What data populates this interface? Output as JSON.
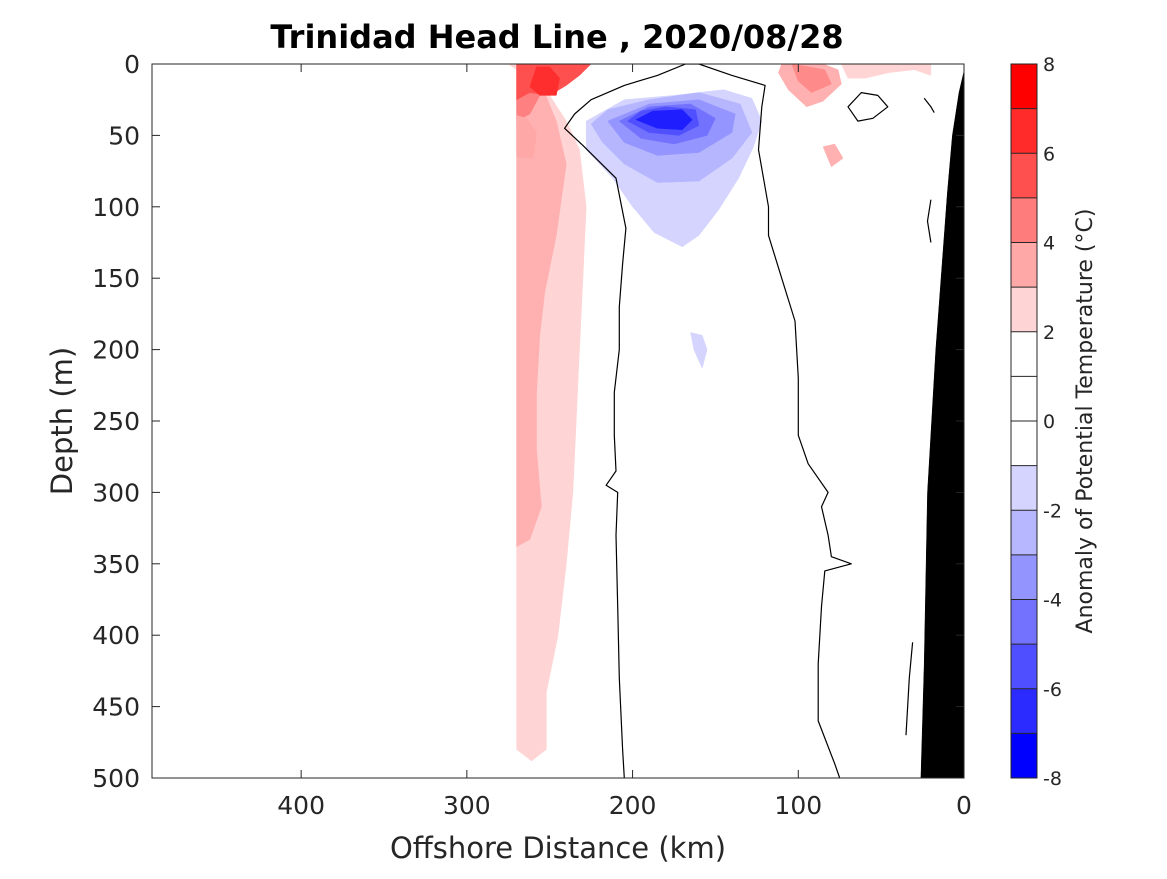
{
  "chart_data": {
    "type": "heatmap",
    "subtype": "filled-contour-section",
    "title": "Trinidad Head Line , 2020/08/28",
    "xlabel": "Offshore Distance (km)",
    "ylabel": "Depth (m)",
    "x_direction": "reversed",
    "y_direction": "reversed",
    "xlim": [
      0,
      490
    ],
    "ylim": [
      0,
      500
    ],
    "xticks": [
      400,
      300,
      200,
      100,
      0
    ],
    "xtick_labels": [
      "400",
      "300",
      "200",
      "100",
      "0"
    ],
    "yticks": [
      0,
      50,
      100,
      150,
      200,
      250,
      300,
      350,
      400,
      450,
      500
    ],
    "ytick_labels": [
      "0",
      "50",
      "100",
      "150",
      "200",
      "250",
      "300",
      "350",
      "400",
      "450",
      "500"
    ],
    "colorbar": {
      "label": "Anomaly of Potential Temperature (°C)",
      "range": [
        -8,
        8
      ],
      "levels": [
        -8,
        -7,
        -6,
        -5,
        -4,
        -3,
        -2,
        -1,
        1,
        2,
        3,
        4,
        5,
        6,
        7,
        8
      ],
      "ticks": [
        8,
        6,
        4,
        2,
        0,
        -2,
        -4,
        -6,
        -8
      ],
      "tick_labels": [
        "8",
        "6",
        "4",
        "2",
        "0",
        "-2",
        "-4",
        "-6",
        "-8"
      ],
      "colors_top_to_bottom": [
        "#ff0000",
        "#ff2a2a",
        "#ff5050",
        "#ff7c7c",
        "#ffa8a8",
        "#ffd4d4",
        "#ffffff",
        "#ffffff",
        "#d4d4ff",
        "#b7b7ff",
        "#9494ff",
        "#7272ff",
        "#4f4fff",
        "#2b2bff",
        "#0000ff"
      ]
    },
    "regions": [
      {
        "name": "warm anomaly +1 to +2",
        "value_range": [
          1,
          2
        ],
        "color": "#ffd4d4",
        "points": [
          [
            270,
            0
          ],
          [
            270,
            480
          ],
          [
            261,
            488
          ],
          [
            252,
            480
          ],
          [
            252,
            440
          ],
          [
            245,
            400
          ],
          [
            240,
            350
          ],
          [
            236,
            300
          ],
          [
            234,
            250
          ],
          [
            232,
            200
          ],
          [
            230,
            150
          ],
          [
            228,
            100
          ],
          [
            232,
            60
          ],
          [
            240,
            40
          ],
          [
            250,
            22
          ],
          [
            265,
            8
          ],
          [
            275,
            0
          ]
        ]
      },
      {
        "name": "warm anomaly +2 to +3",
        "value_range": [
          2,
          3
        ],
        "color": "#ffb0b0",
        "points": [
          [
            270,
            0
          ],
          [
            270,
            338
          ],
          [
            262,
            333
          ],
          [
            255,
            310
          ],
          [
            258,
            270
          ],
          [
            258,
            230
          ],
          [
            256,
            190
          ],
          [
            253,
            160
          ],
          [
            246,
            120
          ],
          [
            243,
            95
          ],
          [
            240,
            70
          ],
          [
            246,
            40
          ],
          [
            260,
            0
          ]
        ]
      },
      {
        "name": "warm anomaly +3 to +4",
        "value_range": [
          3,
          4
        ],
        "color": "#ff8080",
        "points": [
          [
            270,
            0
          ],
          [
            270,
            40
          ],
          [
            262,
            35
          ],
          [
            255,
            20
          ],
          [
            255,
            10
          ],
          [
            262,
            0
          ]
        ]
      },
      {
        "name": "warm anomaly +2 to +3 at depth",
        "value_range": [
          2,
          3
        ],
        "color": "#ffa8a8",
        "points": [
          [
            270,
            36
          ],
          [
            270,
            65
          ],
          [
            260,
            66
          ],
          [
            258,
            48
          ],
          [
            264,
            38
          ]
        ]
      },
      {
        "name": "warm anomaly near surface",
        "value_range": [
          4,
          6
        ],
        "color": "#ff5050",
        "points": [
          [
            270,
            0
          ],
          [
            270,
            25
          ],
          [
            262,
            20
          ],
          [
            250,
            22
          ],
          [
            240,
            15
          ],
          [
            232,
            8
          ],
          [
            225,
            0
          ]
        ]
      },
      {
        "name": "warm anomaly core",
        "value_range": [
          6,
          7
        ],
        "color": "#ff2e2e",
        "points": [
          [
            258,
            2
          ],
          [
            262,
            16
          ],
          [
            256,
            22
          ],
          [
            246,
            22
          ],
          [
            244,
            10
          ],
          [
            250,
            2
          ]
        ]
      },
      {
        "name": "coastal warm anomaly",
        "value_range": [
          2,
          4
        ],
        "color": "#ffb0b0",
        "points": [
          [
            110,
            0
          ],
          [
            112,
            6
          ],
          [
            106,
            18
          ],
          [
            95,
            30
          ],
          [
            85,
            26
          ],
          [
            74,
            14
          ],
          [
            76,
            4
          ],
          [
            85,
            0
          ]
        ]
      },
      {
        "name": "coastal warm anomaly core",
        "value_range": [
          4,
          5
        ],
        "color": "#ff8a8a",
        "points": [
          [
            104,
            0
          ],
          [
            100,
            12
          ],
          [
            92,
            20
          ],
          [
            80,
            14
          ],
          [
            84,
            4
          ]
        ]
      },
      {
        "name": "nearshore warm patch",
        "value_range": [
          1,
          2
        ],
        "color": "#ffd4d4",
        "points": [
          [
            74,
            0
          ],
          [
            70,
            10
          ],
          [
            60,
            10
          ],
          [
            45,
            6
          ],
          [
            30,
            4
          ],
          [
            20,
            8
          ],
          [
            20,
            0
          ]
        ]
      },
      {
        "name": "isolated warm spot",
        "value_range": [
          2,
          3
        ],
        "color": "#ffb0b0",
        "points": [
          [
            85,
            58
          ],
          [
            80,
            72
          ],
          [
            73,
            66
          ],
          [
            78,
            56
          ]
        ]
      },
      {
        "name": "cold anomaly -1 to -2",
        "value_range": [
          -2,
          -1
        ],
        "color": "#d4d4ff",
        "points": [
          [
            228,
            40
          ],
          [
            228,
            60
          ],
          [
            212,
            80
          ],
          [
            200,
            100
          ],
          [
            187,
            118
          ],
          [
            170,
            128
          ],
          [
            160,
            120
          ],
          [
            148,
            102
          ],
          [
            136,
            80
          ],
          [
            127,
            58
          ],
          [
            122,
            40
          ],
          [
            128,
            24
          ],
          [
            145,
            18
          ],
          [
            175,
            22
          ],
          [
            205,
            25
          ]
        ]
      },
      {
        "name": "cold anomaly -2 to -3",
        "value_range": [
          -3,
          -2
        ],
        "color": "#b6b6ff",
        "points": [
          [
            225,
            42
          ],
          [
            218,
            55
          ],
          [
            205,
            70
          ],
          [
            185,
            83
          ],
          [
            160,
            82
          ],
          [
            140,
            66
          ],
          [
            128,
            48
          ],
          [
            135,
            28
          ],
          [
            160,
            20
          ],
          [
            190,
            25
          ],
          [
            215,
            32
          ]
        ]
      },
      {
        "name": "cold anomaly -3 to -4",
        "value_range": [
          -4,
          -3
        ],
        "color": "#9595ff",
        "points": [
          [
            215,
            40
          ],
          [
            205,
            55
          ],
          [
            185,
            64
          ],
          [
            160,
            62
          ],
          [
            140,
            48
          ],
          [
            138,
            35
          ],
          [
            160,
            25
          ],
          [
            190,
            28
          ]
        ]
      },
      {
        "name": "cold anomaly -4 to -5",
        "value_range": [
          -5,
          -4
        ],
        "color": "#7272ff",
        "points": [
          [
            208,
            40
          ],
          [
            195,
            52
          ],
          [
            175,
            56
          ],
          [
            155,
            50
          ],
          [
            150,
            38
          ],
          [
            165,
            28
          ],
          [
            190,
            30
          ]
        ]
      },
      {
        "name": "cold anomaly -5 to -6",
        "value_range": [
          -6,
          -5
        ],
        "color": "#5050ff",
        "points": [
          [
            203,
            40
          ],
          [
            190,
            48
          ],
          [
            172,
            50
          ],
          [
            160,
            43
          ],
          [
            162,
            32
          ],
          [
            180,
            30
          ],
          [
            195,
            33
          ]
        ]
      },
      {
        "name": "cold anomaly core",
        "value_range": [
          -7,
          -6
        ],
        "color": "#1e1eff",
        "points": [
          [
            198,
            39
          ],
          [
            185,
            45
          ],
          [
            170,
            46
          ],
          [
            164,
            39
          ],
          [
            170,
            32
          ],
          [
            188,
            33
          ]
        ]
      },
      {
        "name": "deep cold spot",
        "value_range": [
          -2,
          -1
        ],
        "color": "#d4d4ff",
        "points": [
          [
            165,
            188
          ],
          [
            163,
            200
          ],
          [
            158,
            213
          ],
          [
            155,
            200
          ],
          [
            158,
            190
          ]
        ]
      },
      {
        "name": "seafloor (bathymetry)",
        "value_range": null,
        "color": "#000000",
        "points": [
          [
            0,
            5
          ],
          [
            0,
            500
          ],
          [
            26,
            500
          ],
          [
            24,
            420
          ],
          [
            22,
            300
          ],
          [
            17,
            200
          ],
          [
            10,
            90
          ],
          [
            7,
            50
          ],
          [
            3,
            20
          ]
        ]
      }
    ],
    "zero_contours": [
      {
        "name": "offshore zero contour",
        "points": [
          [
            205,
            500
          ],
          [
            206,
            480
          ],
          [
            208,
            430
          ],
          [
            209,
            380
          ],
          [
            210,
            330
          ],
          [
            209,
            300
          ],
          [
            216,
            295
          ],
          [
            210,
            285
          ],
          [
            211,
            260
          ],
          [
            211,
            230
          ],
          [
            208,
            200
          ],
          [
            208,
            170
          ],
          [
            206,
            140
          ],
          [
            204,
            115
          ],
          [
            210,
            80
          ],
          [
            230,
            57
          ],
          [
            241,
            45
          ],
          [
            235,
            35
          ],
          [
            225,
            25
          ],
          [
            205,
            15
          ],
          [
            185,
            8
          ],
          [
            168,
            0
          ],
          [
            160,
            0
          ],
          [
            140,
            8
          ],
          [
            120,
            15
          ],
          [
            122,
            30
          ],
          [
            124,
            60
          ],
          [
            118,
            100
          ],
          [
            118,
            120
          ],
          [
            110,
            150
          ],
          [
            102,
            180
          ],
          [
            100,
            220
          ],
          [
            100,
            260
          ],
          [
            94,
            280
          ],
          [
            82,
            300
          ],
          [
            86,
            310
          ],
          [
            82,
            330
          ],
          [
            80,
            345
          ],
          [
            68,
            350
          ],
          [
            84,
            355
          ],
          [
            86,
            380
          ],
          [
            88,
            420
          ],
          [
            88,
            460
          ],
          [
            78,
            490
          ],
          [
            75,
            500
          ]
        ]
      },
      {
        "name": "nearshore closed zero contour",
        "points": [
          [
            70,
            30
          ],
          [
            64,
            40
          ],
          [
            55,
            38
          ],
          [
            46,
            30
          ],
          [
            52,
            22
          ],
          [
            62,
            20
          ]
        ]
      },
      {
        "name": "nearshore zero contour segment 1",
        "points": [
          [
            24,
            24
          ],
          [
            20,
            30
          ],
          [
            18,
            34
          ]
        ]
      },
      {
        "name": "nearshore zero contour segment 2",
        "points": [
          [
            20,
            95
          ],
          [
            22,
            110
          ],
          [
            20,
            125
          ]
        ]
      },
      {
        "name": "nearshore zero contour segment 3",
        "points": [
          [
            31,
            405
          ],
          [
            33,
            430
          ],
          [
            35,
            470
          ]
        ]
      }
    ]
  }
}
